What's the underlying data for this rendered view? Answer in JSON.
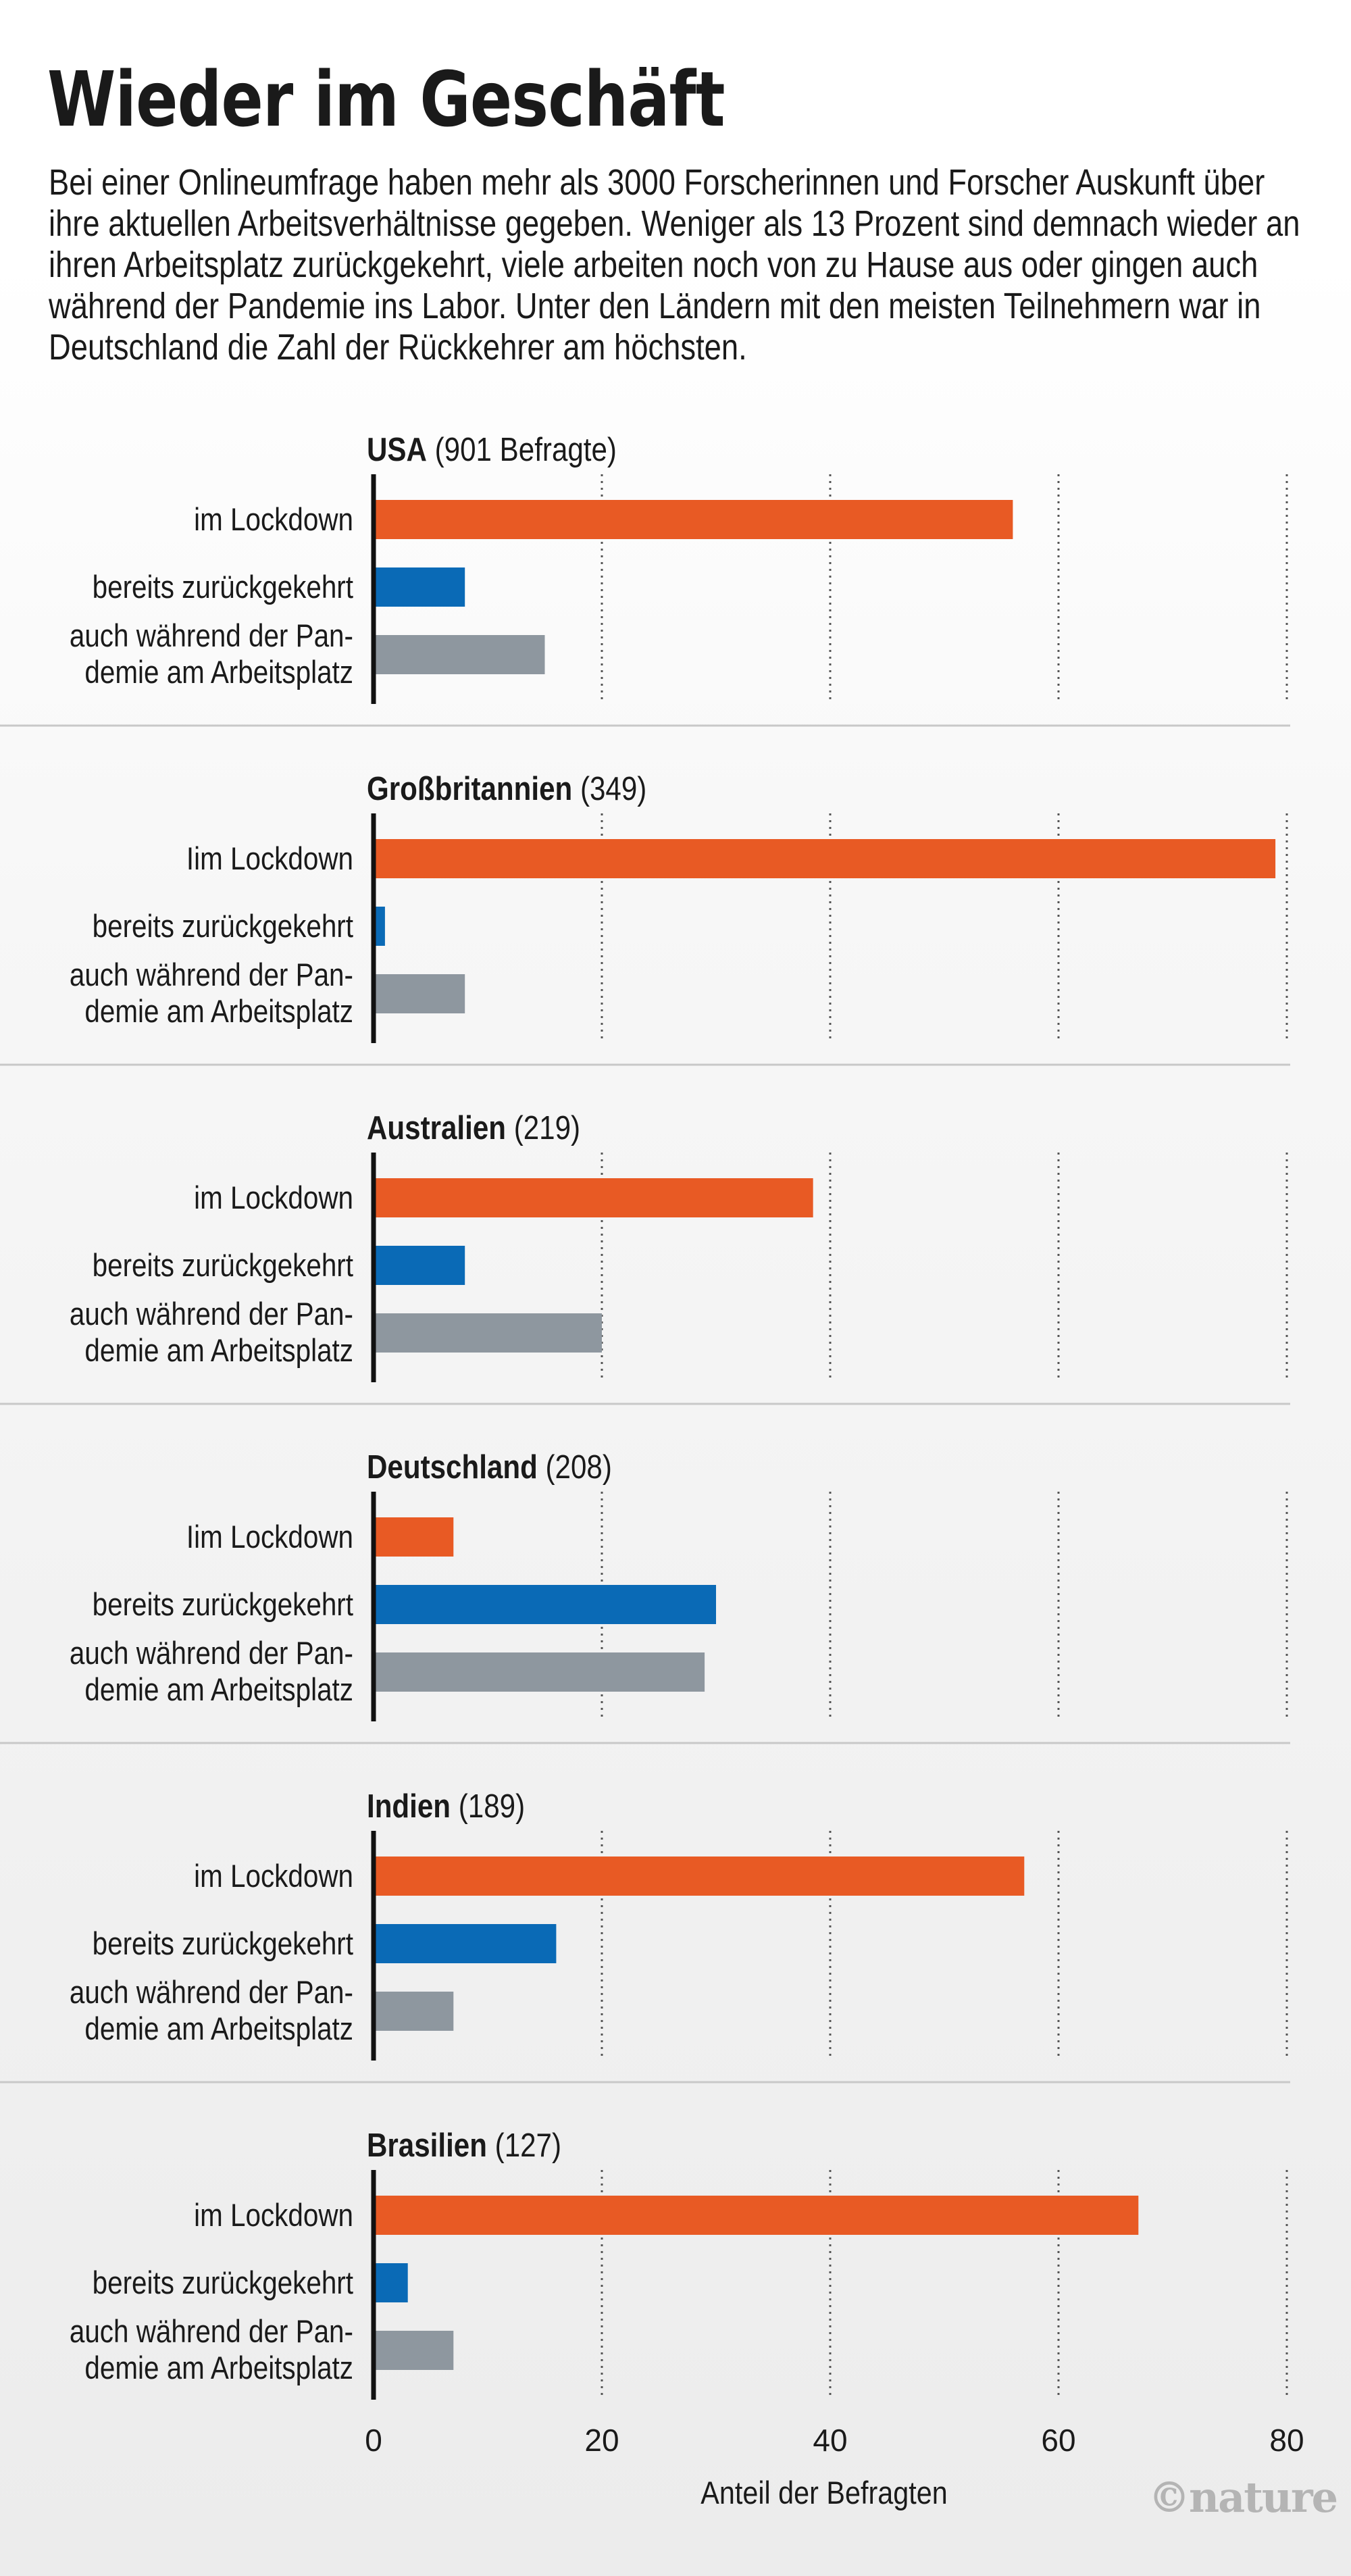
{
  "title": "Wieder im Geschäft",
  "subtitle": "Bei einer Onlineumfrage haben mehr als 3000 Forscherinnen und Forscher Auskunft über ihre aktuellen Arbeitsverhältnisse gegeben. Weniger als 13 Prozent sind demnach wieder an ihren Arbeitsplatz zurückgekehrt, viele arbeiten noch von zu Hause aus oder gingen auch während der Pandemie ins Labor. Unter den Ländern mit den meisten Teilnehmern war in Deutschland die Zahl der Rückkehrer am höchsten.",
  "credit": "©nature",
  "colors": {
    "lockdown": "#e85a24",
    "returned": "#0a6ab6",
    "during": "#8e979f",
    "grid": "#555555",
    "axis": "#111111",
    "separator": "#c8c8c8"
  },
  "chart_data": {
    "type": "bar",
    "orientation": "horizontal",
    "xlabel": "Anteil der Befragten",
    "xlim": [
      0,
      80
    ],
    "xticks": [
      0,
      20,
      40,
      60,
      80
    ],
    "grid": "dotted vertical",
    "panels": [
      {
        "name": "USA",
        "count": "(901 Befragte)",
        "categories": [
          "im Lockdown",
          "bereits zurückgekehrt",
          "auch während der Pan-|demie am Arbeitsplatz"
        ],
        "values": [
          56,
          8,
          15
        ]
      },
      {
        "name": "Großbritannien",
        "count": "(349)",
        "categories": [
          "Iim Lockdown",
          "bereits zurückgekehrt",
          "auch während der Pan-|demie am Arbeitsplatz"
        ],
        "values": [
          79,
          1,
          8
        ]
      },
      {
        "name": "Australien",
        "count": "(219)",
        "categories": [
          "im Lockdown",
          "bereits zurückgekehrt",
          "auch während der Pan-|demie am Arbeitsplatz"
        ],
        "values": [
          38.5,
          8,
          20
        ]
      },
      {
        "name": "Deutschland",
        "count": "(208)",
        "categories": [
          "Iim Lockdown",
          "bereits zurückgekehrt",
          "auch während der Pan-|demie am Arbeitsplatz"
        ],
        "values": [
          7,
          30,
          29
        ]
      },
      {
        "name": "Indien",
        "count": "(189)",
        "categories": [
          "im Lockdown",
          "bereits zurückgekehrt",
          "auch während der Pan-|demie am Arbeitsplatz"
        ],
        "values": [
          57,
          16,
          7
        ]
      },
      {
        "name": "Brasilien",
        "count": "(127)",
        "categories": [
          "im Lockdown",
          "bereits zurückgekehrt",
          "auch während der Pan-|demie am Arbeitsplatz"
        ],
        "values": [
          67,
          3,
          7
        ]
      }
    ]
  }
}
